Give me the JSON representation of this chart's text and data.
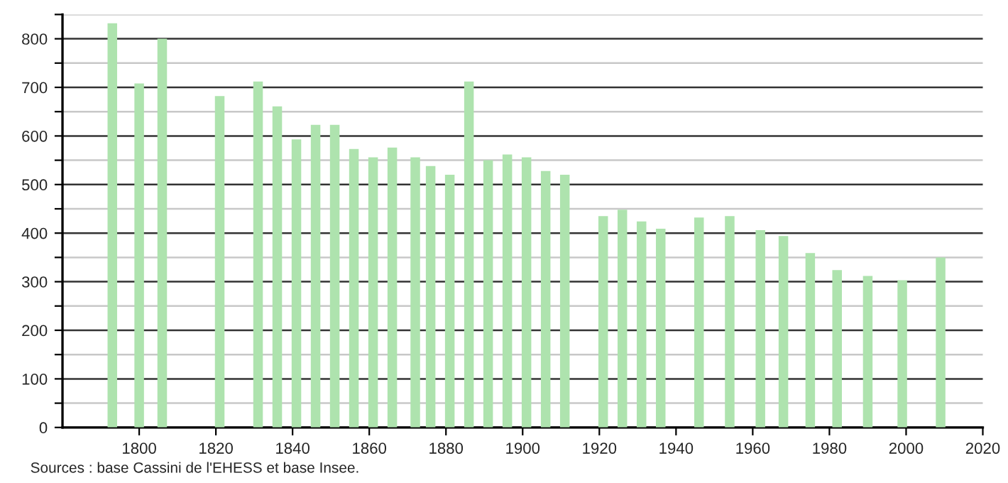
{
  "chart_data": {
    "type": "bar",
    "x": [
      1793,
      1800,
      1806,
      1821,
      1831,
      1836,
      1841,
      1846,
      1851,
      1856,
      1861,
      1866,
      1872,
      1876,
      1881,
      1886,
      1891,
      1896,
      1901,
      1906,
      1911,
      1921,
      1926,
      1931,
      1936,
      1946,
      1954,
      1962,
      1968,
      1975,
      1982,
      1990,
      1999,
      2009
    ],
    "values": [
      832,
      708,
      800,
      682,
      712,
      661,
      593,
      623,
      623,
      573,
      556,
      576,
      556,
      538,
      520,
      712,
      550,
      562,
      556,
      528,
      520,
      435,
      448,
      424,
      409,
      432,
      435,
      406,
      394,
      359,
      324,
      312,
      303,
      350
    ],
    "color": "#aee3ae",
    "xlim": [
      1780,
      2020
    ],
    "xticks": [
      1800,
      1820,
      1840,
      1860,
      1880,
      1900,
      1920,
      1940,
      1960,
      1980,
      2000,
      2020
    ],
    "ylim": [
      0,
      850
    ],
    "yticks": [
      0,
      {
        "value": 50,
        "label": null
      },
      100,
      {
        "value": 150,
        "label": null
      },
      200,
      {
        "value": 250,
        "label": null
      },
      300,
      {
        "value": 350,
        "label": null
      },
      400,
      {
        "value": 450,
        "label": null
      },
      500,
      {
        "value": 550,
        "label": null
      },
      600,
      {
        "value": 650,
        "label": null
      },
      700,
      {
        "value": 750,
        "label": null
      },
      800,
      {
        "value": 850,
        "label": null
      }
    ],
    "grid": "y",
    "annotations": [
      "Sources : base Cassini de l'EHESS et base Insee."
    ]
  }
}
